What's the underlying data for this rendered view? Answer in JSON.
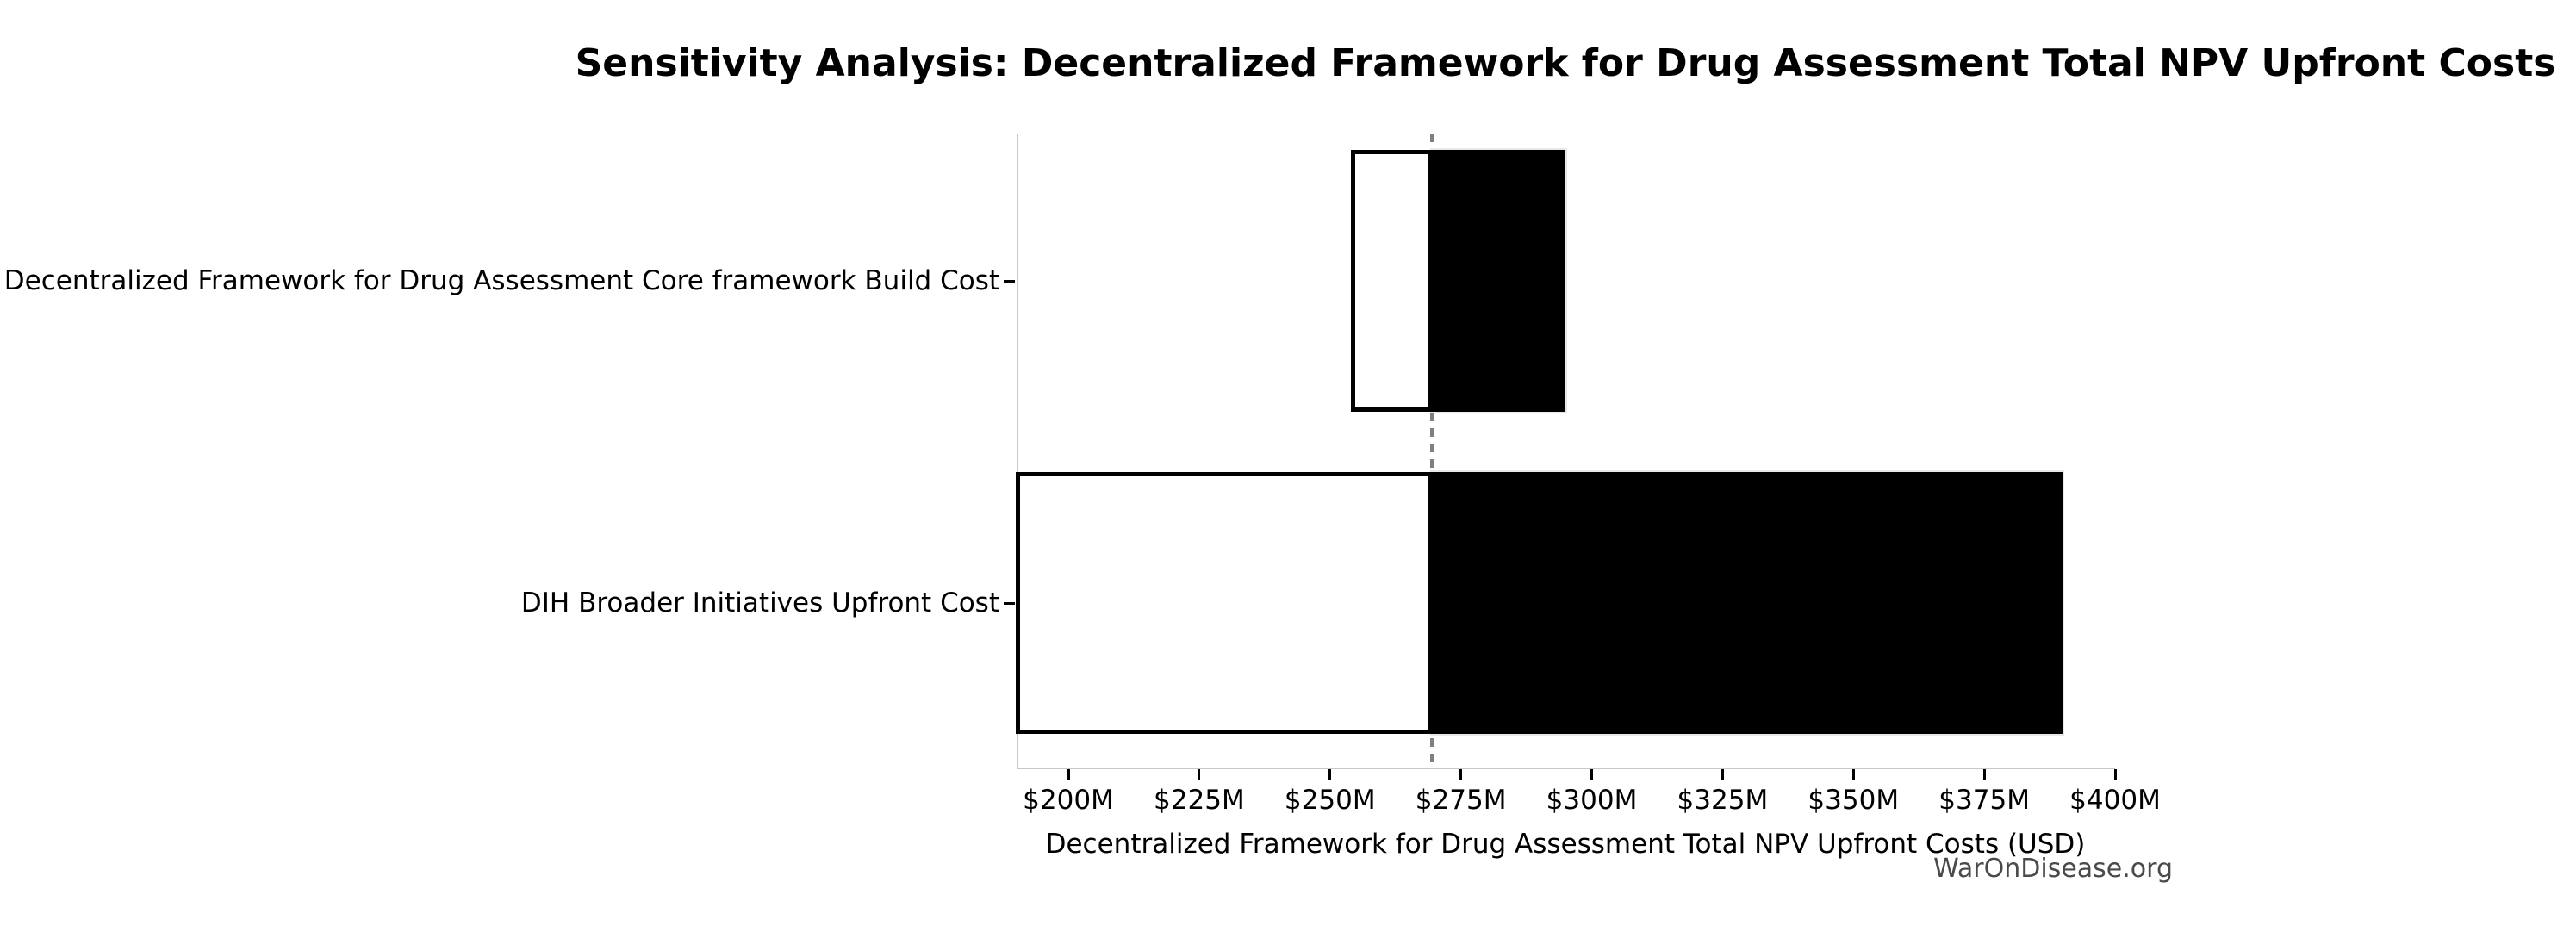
{
  "watermark": "WarOnDisease.org",
  "chart_data": {
    "type": "bar",
    "variant": "tornado-sensitivity",
    "orientation": "horizontal",
    "title": "Sensitivity Analysis: Decentralized Framework for Drug Assessment Total NPV Upfront Costs",
    "xlabel": "Decentralized Framework for Drug Assessment Total NPV Upfront Costs (USD)",
    "ylabel": "",
    "unit": "USD millions",
    "grid": false,
    "legend": "none",
    "baseline_value_m": 269.5,
    "xlim_m": [
      190,
      400
    ],
    "x_ticks": [
      {
        "value_m": 200,
        "label": "$200M"
      },
      {
        "value_m": 225,
        "label": "$225M"
      },
      {
        "value_m": 250,
        "label": "$250M"
      },
      {
        "value_m": 275,
        "label": "$275M"
      },
      {
        "value_m": 300,
        "label": "$300M"
      },
      {
        "value_m": 325,
        "label": "$325M"
      },
      {
        "value_m": 350,
        "label": "$350M"
      },
      {
        "value_m": 375,
        "label": "$375M"
      },
      {
        "value_m": 400,
        "label": "$400M"
      }
    ],
    "bars": [
      {
        "category": "Decentralized Framework for Drug Assessment Core framework Build Cost",
        "low_total_m": 254,
        "high_total_m": 295,
        "low_side_fill": "#ffffff",
        "high_side_fill": "#000000"
      },
      {
        "category": "DIH Broader Initiatives Upfront Cost",
        "low_total_m": 190,
        "high_total_m": 390,
        "low_side_fill": "#ffffff",
        "high_side_fill": "#000000"
      }
    ],
    "colors": {
      "bar_high_fill": "#000000",
      "bar_low_fill": "#ffffff",
      "bar_low_edge": "#000000",
      "baseline_dash": "#7f7f7f",
      "spine": "#c8c8c8",
      "text": "#000000",
      "watermark": "#4a4a4a"
    }
  }
}
